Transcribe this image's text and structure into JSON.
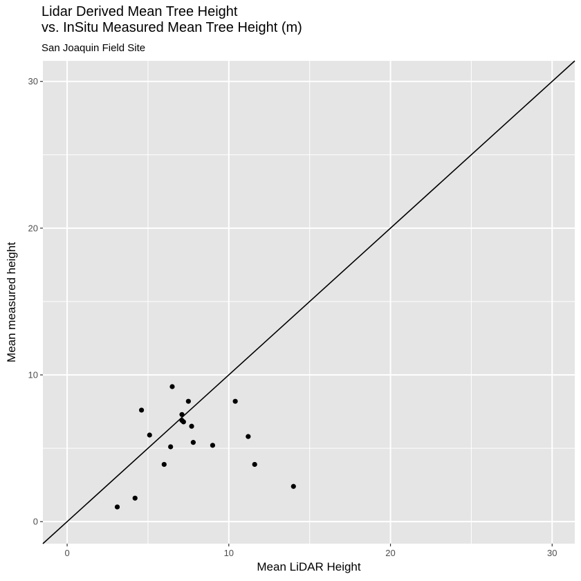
{
  "chart_data": {
    "type": "scatter",
    "title_lines": [
      "Lidar Derived Mean Tree Height",
      "vs. InSitu Measured Mean Tree Height (m)"
    ],
    "subtitle": "San Joaquin Field Site",
    "xlabel": "Mean LiDAR Height",
    "ylabel": "Mean measured height",
    "xlim": [
      -1.5,
      31.4
    ],
    "ylim": [
      -1.5,
      31.4
    ],
    "xticks": [
      0,
      10,
      20,
      30
    ],
    "yticks": [
      0,
      10,
      20,
      30
    ],
    "grid": true,
    "reference_line": {
      "slope": 1,
      "intercept": 0
    },
    "points": [
      {
        "x": 3.1,
        "y": 1.0
      },
      {
        "x": 4.2,
        "y": 1.6
      },
      {
        "x": 4.6,
        "y": 7.6
      },
      {
        "x": 5.1,
        "y": 5.9
      },
      {
        "x": 6.0,
        "y": 3.9
      },
      {
        "x": 6.4,
        "y": 5.1
      },
      {
        "x": 6.5,
        "y": 9.2
      },
      {
        "x": 7.1,
        "y": 6.9
      },
      {
        "x": 7.1,
        "y": 7.3
      },
      {
        "x": 7.2,
        "y": 6.8
      },
      {
        "x": 7.5,
        "y": 8.2
      },
      {
        "x": 7.7,
        "y": 6.5
      },
      {
        "x": 7.8,
        "y": 5.4
      },
      {
        "x": 9.0,
        "y": 5.2
      },
      {
        "x": 10.4,
        "y": 8.2
      },
      {
        "x": 11.2,
        "y": 5.8
      },
      {
        "x": 11.6,
        "y": 3.9
      },
      {
        "x": 14.0,
        "y": 2.4
      }
    ],
    "colors": {
      "panel": "#e5e5e5",
      "grid": "#ffffff",
      "point": "#000000",
      "line": "#000000",
      "tick_text": "#4d4d4d"
    }
  }
}
